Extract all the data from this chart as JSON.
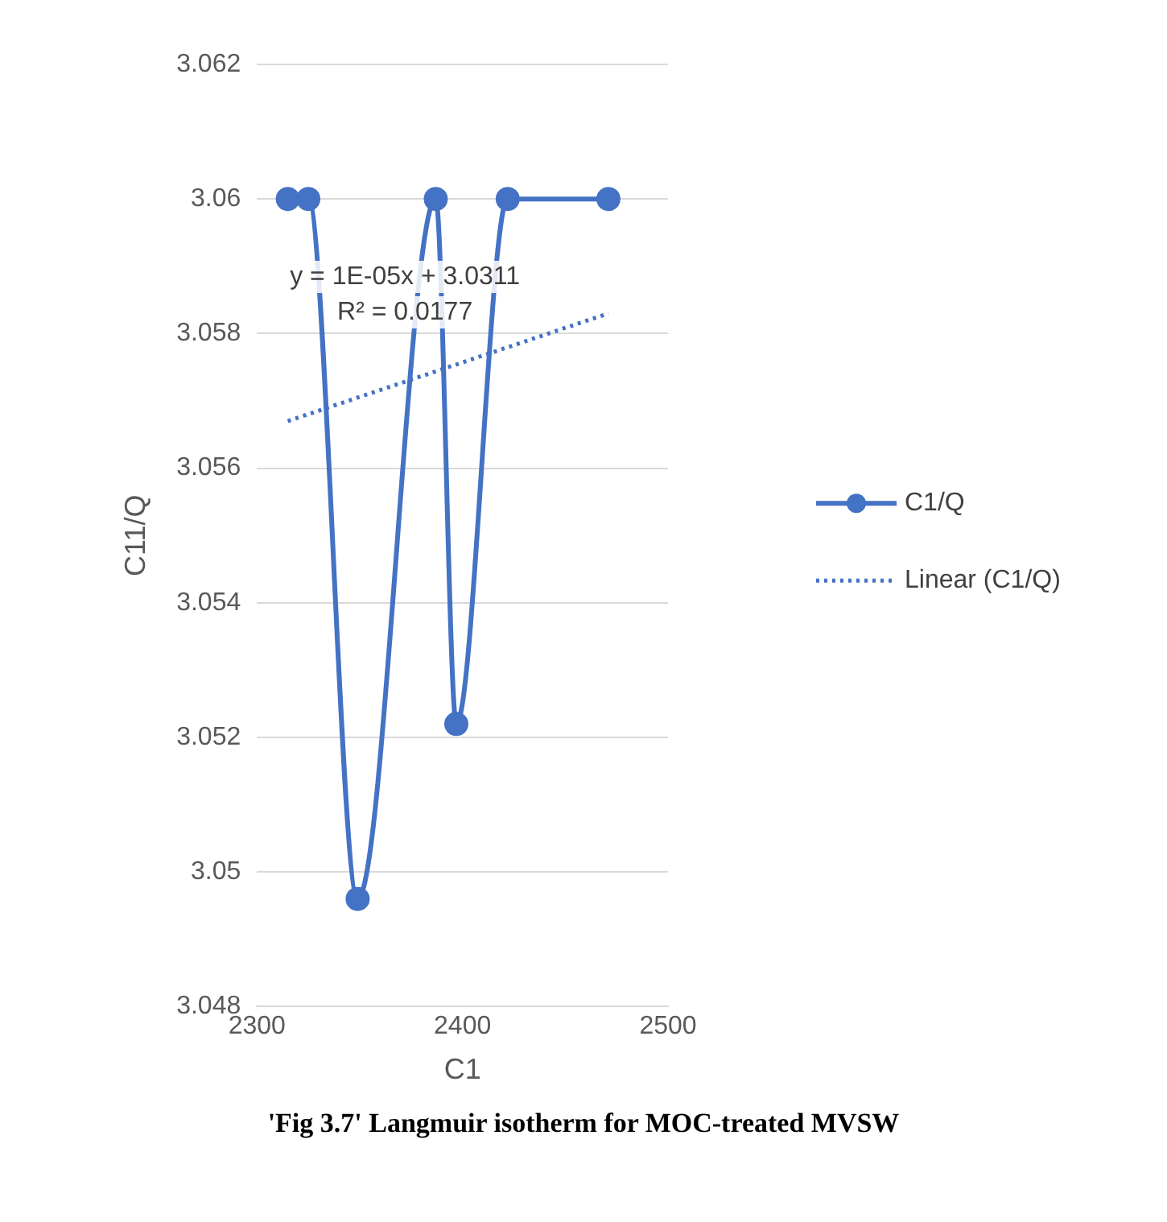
{
  "chart_data": {
    "type": "line",
    "xlabel": "C1",
    "ylabel": "C11/Q",
    "xlim": [
      2300,
      2500
    ],
    "xticks": [
      2300,
      2400,
      2500
    ],
    "ylim": [
      3.048,
      3.062
    ],
    "yticks": [
      3.048,
      3.05,
      3.052,
      3.054,
      3.056,
      3.058,
      3.06,
      3.062
    ],
    "grid": "y",
    "legend": "right",
    "marker": "circle",
    "series": [
      {
        "name": "C1/Q",
        "color": "#4472c4",
        "line_style": "solid",
        "x": [
          2315,
          2325,
          2349,
          2387,
          2397,
          2422,
          2471
        ],
        "values": [
          3.06,
          3.06,
          3.0496,
          3.06,
          3.0522,
          3.06,
          3.06
        ]
      },
      {
        "name": "Linear (C1/Q)",
        "color": "#4472c4",
        "marker": "none",
        "line_style": "dotted",
        "x": [
          2315,
          2471
        ],
        "values": [
          3.0567,
          3.0583
        ]
      }
    ],
    "annotations": [
      "y = 1E-05x + 3.0311",
      "R² = 0.0177",
      "'Fig 3.7' Langmuir isotherm for MOC-treated MVSW"
    ]
  }
}
